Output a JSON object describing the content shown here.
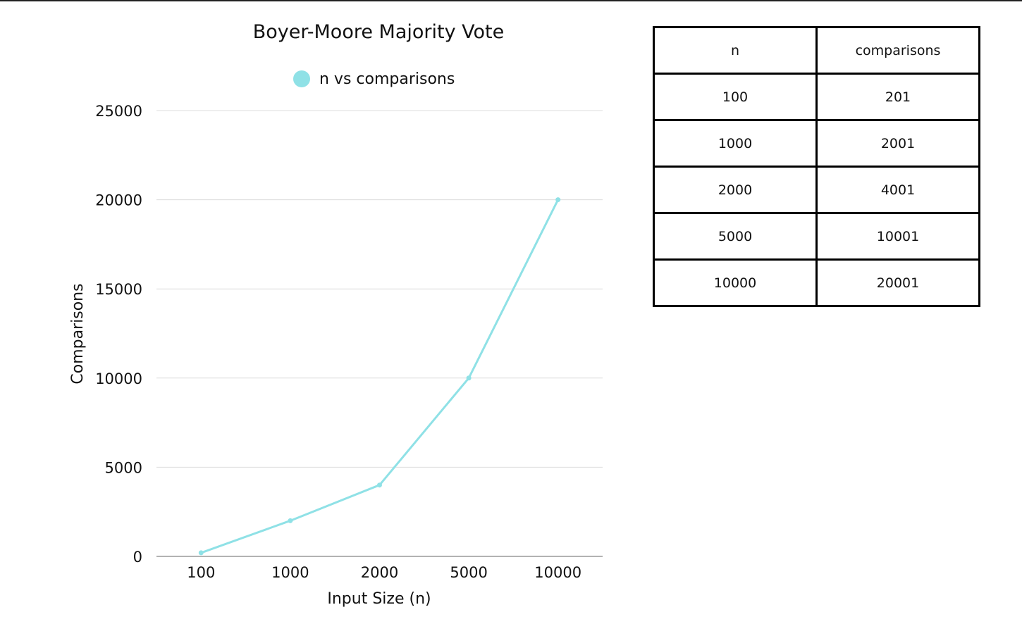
{
  "chart_data": {
    "type": "line",
    "title": "Boyer-Moore Majority Vote",
    "xlabel": "Input Size (n)",
    "ylabel": "Comparisons",
    "categories": [
      "100",
      "1000",
      "2000",
      "5000",
      "10000"
    ],
    "series": [
      {
        "name": "n vs comparisons",
        "color": "#8fe1e6",
        "values": [
          201,
          2001,
          4001,
          10001,
          20001
        ]
      }
    ],
    "ylim": [
      0,
      25000
    ],
    "yticks": [
      "0",
      "5000",
      "10000",
      "15000",
      "20000",
      "25000"
    ],
    "grid": true,
    "legend": "top-center"
  },
  "table": {
    "headers": [
      "n",
      "comparisons"
    ],
    "rows": [
      [
        "100",
        "201"
      ],
      [
        "1000",
        "2001"
      ],
      [
        "2000",
        "4001"
      ],
      [
        "5000",
        "10001"
      ],
      [
        "10000",
        "20001"
      ]
    ]
  }
}
